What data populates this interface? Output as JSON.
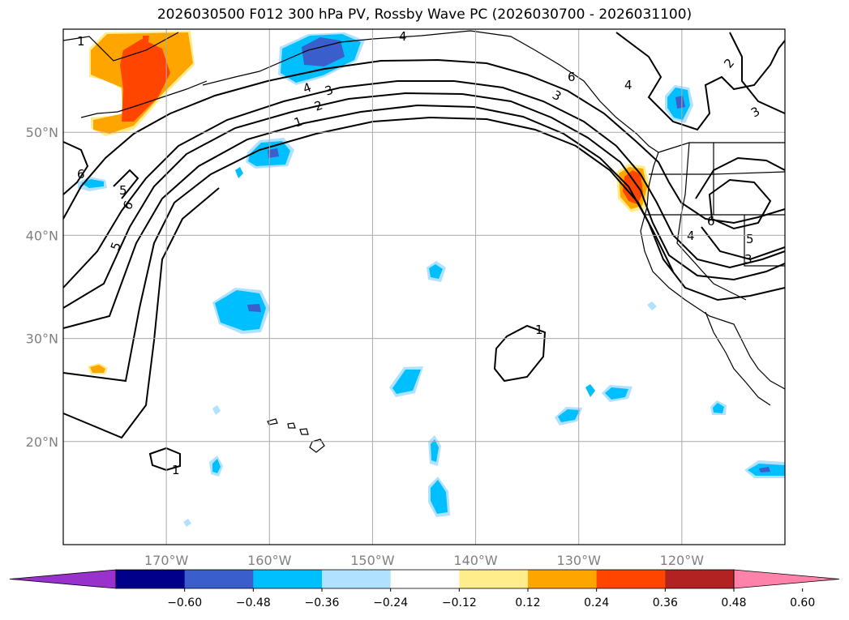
{
  "title": "2026030500 F012 300 hPa PV, Rossby Wave PC (2026030700 - 2026031100)",
  "map": {
    "lat_range": [
      10,
      60
    ],
    "lon_range": [
      -180,
      -110
    ],
    "lat_labels": [
      {
        "lat": 50,
        "text": "50°N"
      },
      {
        "lat": 40,
        "text": "40°N"
      },
      {
        "lat": 30,
        "text": "30°N"
      },
      {
        "lat": 20,
        "text": "20°N"
      }
    ],
    "lon_labels": [
      {
        "lon": -170,
        "text": "170°W"
      },
      {
        "lon": -160,
        "text": "160°W"
      },
      {
        "lon": -150,
        "text": "150°W"
      },
      {
        "lon": -140,
        "text": "140°W"
      },
      {
        "lon": -130,
        "text": "130°W"
      },
      {
        "lon": -120,
        "text": "120°W"
      }
    ],
    "pv_contour_labels": [
      "1",
      "2",
      "3",
      "4",
      "5",
      "6",
      "1",
      "1",
      "2",
      "3",
      "4",
      "4",
      "3",
      "1",
      "6",
      "6",
      "3",
      "4",
      "5",
      "5",
      "6"
    ]
  },
  "colorbar": {
    "colors": [
      "#9932cc",
      "#00008b",
      "#3a5fcd",
      "#00bfff",
      "#b0e2ff",
      "#ffffff",
      "#ffec8b",
      "#ffa500",
      "#ff4500",
      "#b22222",
      "#ff82ab"
    ],
    "tick_labels": [
      "−0.60",
      "−0.48",
      "−0.36",
      "−0.24",
      "−0.12",
      "0.12",
      "0.24",
      "0.36",
      "0.48",
      "0.60"
    ]
  },
  "colors": {
    "contour": "#000000",
    "gridline": "#aaaaaa",
    "axis_label": "#808080"
  }
}
